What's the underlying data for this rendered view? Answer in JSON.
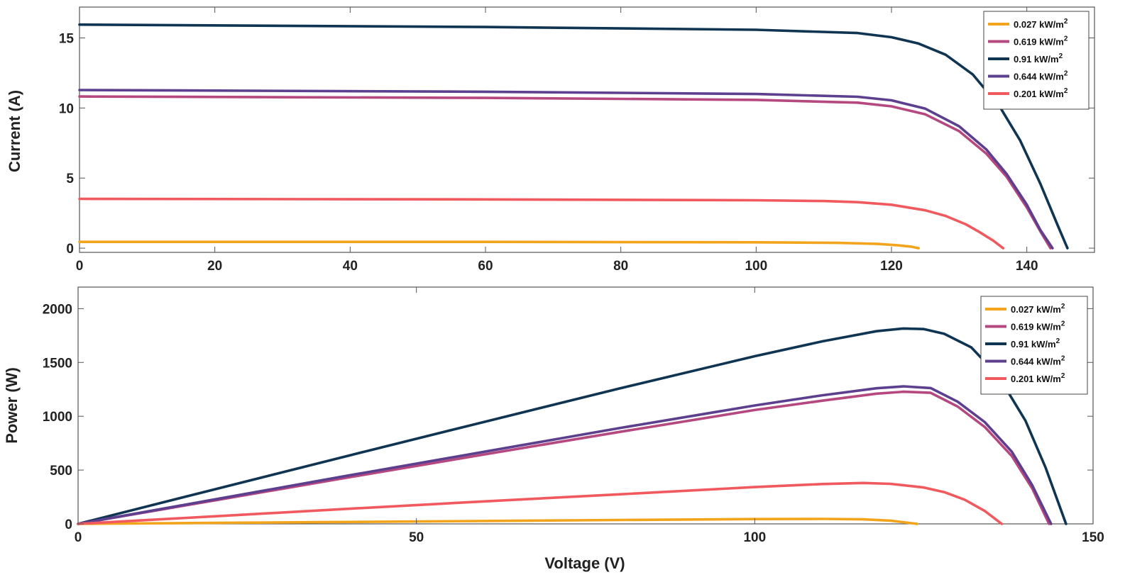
{
  "chart_data": [
    {
      "type": "line",
      "title": "",
      "xlabel": "",
      "ylabel": "Current (A)",
      "xlim": [
        0,
        150
      ],
      "ylim": [
        -0.3,
        17.2
      ],
      "xticks": [
        0,
        20,
        40,
        60,
        80,
        100,
        120,
        140
      ],
      "yticks": [
        0,
        5,
        10,
        15
      ],
      "legend_position": "top-right",
      "series": [
        {
          "name": "0.027 kW/m",
          "sup": "2",
          "color": "#F2A51C",
          "x": [
            0,
            60,
            100,
            112,
            118,
            121,
            123,
            124
          ],
          "y": [
            0.45,
            0.45,
            0.42,
            0.38,
            0.3,
            0.2,
            0.1,
            0.0
          ]
        },
        {
          "name": "0.619 kW/m",
          "sup": "2",
          "color": "#B5487F",
          "x": [
            0,
            60,
            100,
            115,
            120,
            125,
            130,
            134,
            137,
            140,
            142,
            143.5
          ],
          "y": [
            10.82,
            10.72,
            10.58,
            10.38,
            10.12,
            9.55,
            8.35,
            6.75,
            5.1,
            2.9,
            1.2,
            0.0
          ]
        },
        {
          "name": "0.91 kW/m",
          "sup": "2",
          "color": "#0F3552",
          "x": [
            0,
            60,
            100,
            115,
            120,
            124,
            128,
            132,
            136,
            139,
            142,
            144.5,
            146
          ],
          "y": [
            15.95,
            15.78,
            15.58,
            15.35,
            15.05,
            14.6,
            13.8,
            12.4,
            10.1,
            7.7,
            4.6,
            1.7,
            0.0
          ]
        },
        {
          "name": "0.644 kW/m",
          "sup": "2",
          "color": "#5C3F8E",
          "x": [
            0,
            60,
            100,
            115,
            120,
            125,
            130,
            134,
            137,
            140,
            142,
            143.8
          ],
          "y": [
            11.28,
            11.16,
            11.0,
            10.8,
            10.55,
            9.95,
            8.7,
            7.05,
            5.3,
            3.1,
            1.3,
            0.0
          ]
        },
        {
          "name": "0.201 kW/m",
          "sup": "2",
          "color": "#F05A5E",
          "x": [
            0,
            60,
            100,
            110,
            115,
            120,
            125,
            128,
            131,
            133,
            135,
            136.5
          ],
          "y": [
            3.52,
            3.48,
            3.42,
            3.36,
            3.28,
            3.1,
            2.7,
            2.3,
            1.7,
            1.15,
            0.55,
            0.0
          ]
        }
      ]
    },
    {
      "type": "line",
      "title": "",
      "xlabel": "Voltage (V)",
      "ylabel": "Power (W)",
      "xlim": [
        0,
        150
      ],
      "ylim": [
        0,
        2200
      ],
      "xticks": [
        0,
        50,
        100,
        150
      ],
      "yticks": [
        0,
        500,
        1000,
        1500,
        2000
      ],
      "legend_position": "top-right",
      "series": [
        {
          "name": "0.027 kW/m",
          "sup": "2",
          "color": "#F2A51C",
          "x": [
            0,
            20,
            40,
            60,
            80,
            100,
            110,
            116,
            120,
            124
          ],
          "y": [
            0,
            9,
            18,
            27,
            36,
            45,
            46,
            42,
            30,
            0
          ]
        },
        {
          "name": "0.619 kW/m",
          "sup": "2",
          "color": "#B5487F",
          "x": [
            0,
            20,
            40,
            60,
            80,
            100,
            110,
            118,
            122,
            126,
            130,
            134,
            138,
            141,
            143.5
          ],
          "y": [
            0,
            216,
            432,
            645,
            854,
            1058,
            1145,
            1210,
            1228,
            1218,
            1090,
            900,
            630,
            330,
            0
          ]
        },
        {
          "name": "0.91 kW/m",
          "sup": "2",
          "color": "#0F3552",
          "x": [
            0,
            20,
            40,
            60,
            80,
            100,
            110,
            118,
            122,
            125,
            128,
            132,
            136,
            140,
            143,
            146
          ],
          "y": [
            0,
            318,
            634,
            947,
            1258,
            1558,
            1696,
            1790,
            1815,
            1810,
            1766,
            1640,
            1375,
            960,
            520,
            0
          ]
        },
        {
          "name": "0.644 kW/m",
          "sup": "2",
          "color": "#5C3F8E",
          "x": [
            0,
            20,
            40,
            60,
            80,
            100,
            110,
            118,
            122,
            126,
            130,
            134,
            138,
            141,
            143.8
          ],
          "y": [
            0,
            225,
            450,
            670,
            890,
            1100,
            1195,
            1260,
            1278,
            1262,
            1135,
            945,
            670,
            360,
            0
          ]
        },
        {
          "name": "0.201 kW/m",
          "sup": "2",
          "color": "#F05A5E",
          "x": [
            0,
            20,
            40,
            60,
            80,
            100,
            110,
            116,
            120,
            125,
            128,
            131,
            134,
            136.5
          ],
          "y": [
            0,
            70,
            140,
            209,
            275,
            342,
            370,
            380,
            372,
            338,
            295,
            225,
            120,
            0
          ]
        }
      ]
    }
  ]
}
